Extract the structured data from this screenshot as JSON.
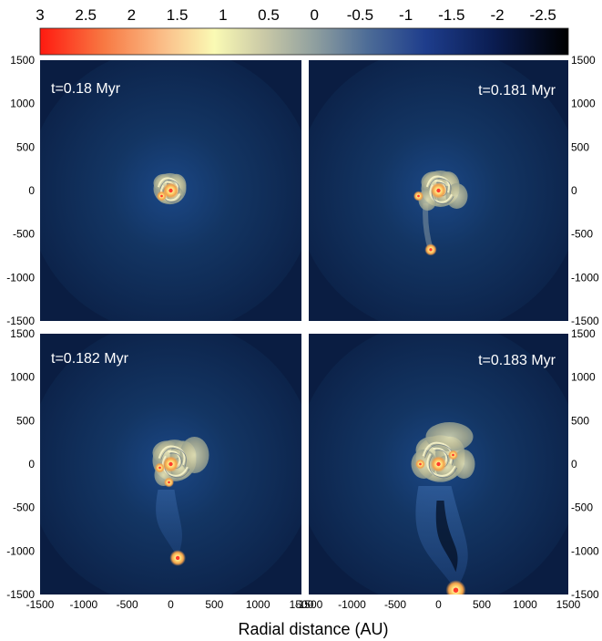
{
  "colorbar": {
    "tick_labels": [
      "3",
      "2.5",
      "2",
      "1.5",
      "1",
      "0.5",
      "0",
      "-0.5",
      "-1",
      "-1.5",
      "-2",
      "-2.5"
    ],
    "range": [
      3,
      -2.9
    ]
  },
  "axes": {
    "tick_labels": [
      "-1500",
      "-1000",
      "-500",
      "0",
      "500",
      "1000",
      "1500"
    ],
    "xlabel": "Radial distance (AU)"
  },
  "panels": [
    {
      "time_label": "t=0.18 Myr"
    },
    {
      "time_label": "t=0.181 Myr"
    },
    {
      "time_label": "t=0.182 Myr"
    },
    {
      "time_label": "t=0.183 Myr"
    }
  ],
  "colors": {
    "background": "#0b1f45",
    "colormap": [
      "#ff1a10",
      "#f87842",
      "#fac28c",
      "#fafab4",
      "#cccba7",
      "#8f9f9f",
      "#4d6c97",
      "#1e3d8c",
      "#0a1c50",
      "#000000"
    ]
  }
}
